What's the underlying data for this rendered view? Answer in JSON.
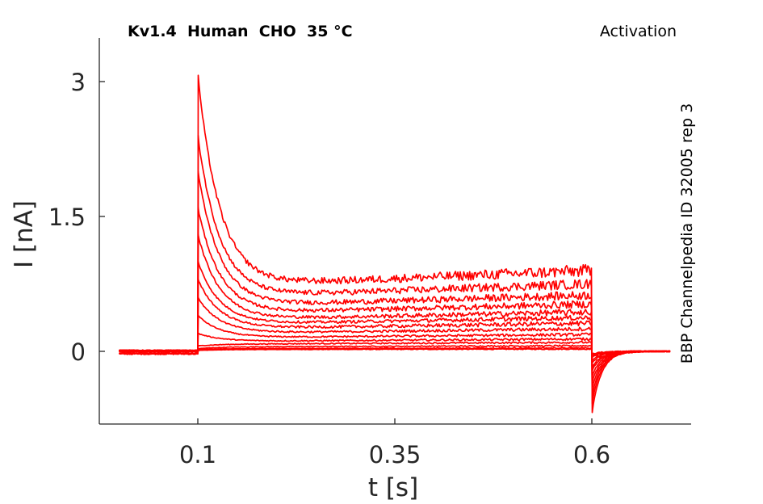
{
  "chart_data": {
    "type": "line",
    "title_left": "Kv1.4  Human  CHO  35 °C",
    "title_right": "Activation",
    "side_label": "BBP Channelpedia ID 32005 rep 3",
    "xlabel": "t [s]",
    "ylabel": "I [nA]",
    "xlim": [
      -0.025,
      0.725
    ],
    "ylim": [
      -0.82,
      3.45
    ],
    "xticks": [
      0.1,
      0.35,
      0.6
    ],
    "xtick_labels": [
      "0.1",
      "0.35",
      "0.6"
    ],
    "yticks": [
      0,
      1.5,
      3
    ],
    "ytick_labels": [
      "0",
      "1.5",
      "3"
    ],
    "grid": false,
    "color": "#ff0000",
    "sweeps": [
      {
        "pre": -0.02,
        "peak": 0.01,
        "steady": 0.02,
        "noise": 0.004,
        "tail": -0.03
      },
      {
        "pre": -0.03,
        "peak": 0.02,
        "steady": 0.03,
        "noise": 0.005,
        "tail": -0.04
      },
      {
        "pre": -0.02,
        "peak": 0.03,
        "steady": 0.05,
        "noise": 0.006,
        "tail": -0.05
      },
      {
        "pre": 0.0,
        "peak": 0.06,
        "steady": 0.08,
        "noise": 0.008,
        "tail": -0.07
      },
      {
        "pre": 0.01,
        "peak": 0.2,
        "steady": 0.11,
        "noise": 0.01,
        "tail": -0.1
      },
      {
        "pre": 0.0,
        "peak": 0.4,
        "steady": 0.15,
        "noise": 0.012,
        "tail": -0.13
      },
      {
        "pre": 0.01,
        "peak": 0.6,
        "steady": 0.2,
        "noise": 0.015,
        "tail": -0.18
      },
      {
        "pre": 0.0,
        "peak": 0.8,
        "steady": 0.25,
        "noise": 0.02,
        "tail": -0.22
      },
      {
        "pre": 0.01,
        "peak": 1.0,
        "steady": 0.3,
        "noise": 0.02,
        "tail": -0.28
      },
      {
        "pre": 0.0,
        "peak": 1.3,
        "steady": 0.35,
        "noise": 0.025,
        "tail": -0.35
      },
      {
        "pre": 0.01,
        "peak": 1.6,
        "steady": 0.42,
        "noise": 0.03,
        "tail": -0.42
      },
      {
        "pre": 0.0,
        "peak": 2.0,
        "steady": 0.5,
        "noise": 0.035,
        "tail": -0.5
      },
      {
        "pre": 0.01,
        "peak": 2.4,
        "steady": 0.6,
        "noise": 0.04,
        "tail": -0.58
      },
      {
        "pre": 0.0,
        "peak": 3.07,
        "steady": 0.72,
        "noise": 0.05,
        "tail": -0.68
      }
    ]
  }
}
